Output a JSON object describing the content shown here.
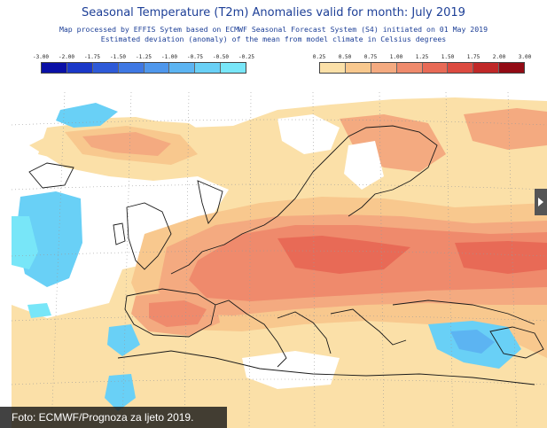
{
  "header": {
    "title": "Seasonal Temperature (T2m) Anomalies valid for month: July 2019",
    "line1": "Map processed by EFFIS Sytem based on ECMWF Seasonal Forecast System (S4) initiated on 01 May 2019",
    "line2": "Estimated deviation (anomaly) of the mean from model climate in Celsius degrees"
  },
  "legend_negative": {
    "labels": [
      "-3.00",
      "-2.00",
      "-1.75",
      "-1.50",
      "-1.25",
      "-1.00",
      "-0.75",
      "-0.50",
      "-0.25"
    ],
    "colors": [
      "#0a10a6",
      "#1a38c8",
      "#2e5ad8",
      "#3f78e3",
      "#4f97ec",
      "#5cb4f2",
      "#69d0f6",
      "#78e6f8"
    ]
  },
  "legend_positive": {
    "labels": [
      "0.25",
      "0.50",
      "0.75",
      "1.00",
      "1.25",
      "1.50",
      "1.75",
      "2.00",
      "3.00"
    ],
    "colors": [
      "#fbe0a8",
      "#f8c88e",
      "#f4aa80",
      "#ef8a6c",
      "#e86a56",
      "#dc4a40",
      "#c02828",
      "#920a14"
    ]
  },
  "credit": {
    "text": "Foto: ECMWF/Prognoza za ljeto 2019."
  },
  "map": {
    "colors": {
      "ocean": "#ffffff",
      "land_neutral": "#ffffff",
      "coast": "#1a1a1a",
      "grid": "#9a9a9a"
    }
  }
}
